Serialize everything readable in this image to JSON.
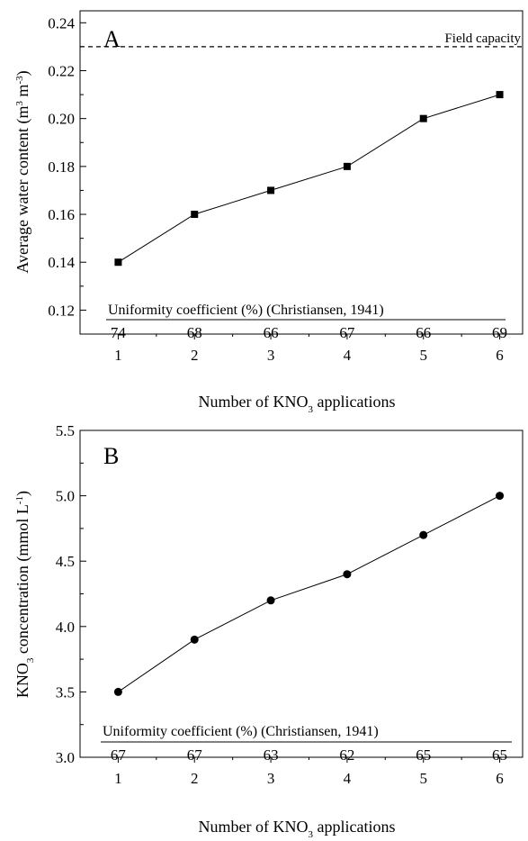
{
  "chart_data": [
    {
      "type": "line",
      "panel_label": "A",
      "x": [
        1,
        2,
        3,
        4,
        5,
        6
      ],
      "series": [
        {
          "values": [
            0.14,
            0.16,
            0.17,
            0.18,
            0.2,
            0.21
          ],
          "marker": "square"
        }
      ],
      "ylabel_parts": [
        "Average water content (m",
        "3",
        " m",
        "-3",
        ")"
      ],
      "xlabel_parts": [
        "Number of KNO",
        "3",
        " applications"
      ],
      "xlim": [
        0.5,
        6.3
      ],
      "ylim": [
        0.11,
        0.245
      ],
      "xticks": [
        1,
        2,
        3,
        4,
        5,
        6
      ],
      "yticks": [
        "0.12",
        "0.14",
        "0.16",
        "0.18",
        "0.20",
        "0.22",
        "0.24"
      ],
      "reference_line": {
        "y": 0.23,
        "label": "Field capacity",
        "style": "dashed"
      },
      "uniformity_label": "Uniformity coefficient (%) (Christiansen, 1941)",
      "uniformity_values": [
        "74",
        "68",
        "66",
        "67",
        "66",
        "69"
      ],
      "grid": false,
      "color": "#000000"
    },
    {
      "type": "line",
      "panel_label": "B",
      "x": [
        1,
        2,
        3,
        4,
        5,
        6
      ],
      "series": [
        {
          "values": [
            3.5,
            3.9,
            4.2,
            4.4,
            4.7,
            5.0
          ],
          "marker": "circle"
        }
      ],
      "ylabel_parts": [
        "KNO",
        "3",
        " concentration (mmol L",
        "-1",
        ")"
      ],
      "xlabel_parts": [
        "Number of KNO",
        "3",
        " applications"
      ],
      "xlim": [
        0.5,
        6.3
      ],
      "ylim": [
        3.0,
        5.5
      ],
      "xticks": [
        1,
        2,
        3,
        4,
        5,
        6
      ],
      "yticks": [
        "3.0",
        "3.5",
        "4.0",
        "4.5",
        "5.0",
        "5.5"
      ],
      "uniformity_label": "Uniformity coefficient (%) (Christiansen, 1941)",
      "uniformity_values": [
        "67",
        "67",
        "63",
        "62",
        "65",
        "65"
      ],
      "grid": false,
      "color": "#000000"
    }
  ]
}
